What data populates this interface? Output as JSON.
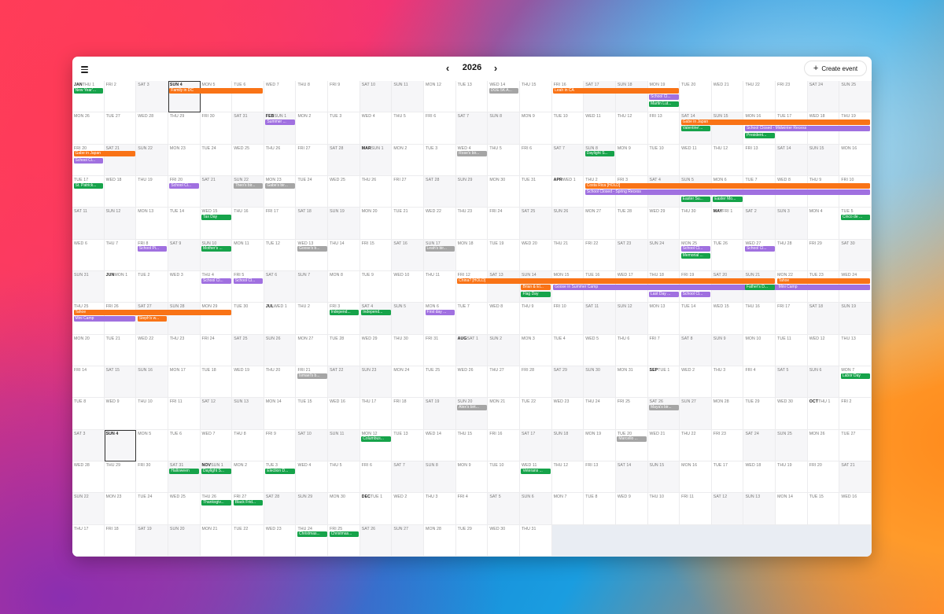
{
  "header": {
    "year": "2026",
    "create_label": "Create event"
  },
  "colors": {
    "orange": "#f97316",
    "green": "#16a34a",
    "purple": "#a070e0",
    "gray": "#a5a5a5"
  },
  "month_labels": [
    "JAN",
    "FEB",
    "MAR",
    "APR",
    "MAY",
    "JUN",
    "JUL",
    "AUG",
    "SEP",
    "OCT",
    "NOV",
    "DEC"
  ],
  "day_labels": [
    "SUN",
    "MON",
    "TUE",
    "WED",
    "THU",
    "FRI",
    "SAT"
  ],
  "today": "SUN 4",
  "events": [
    {
      "t": "New Year'...",
      "c": "green",
      "r": 0,
      "s": 0,
      "n": 1
    },
    {
      "t": "Family in DC",
      "c": "orange",
      "r": 0,
      "s": 3,
      "n": 3
    },
    {
      "t": "DOE 5K A...",
      "c": "gray",
      "r": 0,
      "s": 13,
      "n": 1
    },
    {
      "t": "Leah in CA",
      "c": "orange",
      "r": 0,
      "s": 15,
      "n": 4
    },
    {
      "t": "School Cl...",
      "c": "purple",
      "r": 0,
      "s": 18,
      "n": 1,
      "l": 1
    },
    {
      "t": "Martin Lut...",
      "c": "green",
      "r": 0,
      "s": 18,
      "n": 1,
      "l": 2
    },
    {
      "t": "Summer ...",
      "c": "purple",
      "r": 1,
      "s": 6,
      "n": 1
    },
    {
      "t": "Gabe in Japan",
      "c": "orange",
      "r": 1,
      "s": 19,
      "n": 6
    },
    {
      "t": "Valentine'...",
      "c": "green",
      "r": 1,
      "s": 19,
      "n": 1,
      "l": 1
    },
    {
      "t": "School Closed - Midwinter Recess",
      "c": "purple",
      "r": 1,
      "s": 21,
      "n": 4,
      "l": 1
    },
    {
      "t": "President...",
      "c": "green",
      "r": 1,
      "s": 21,
      "n": 1,
      "l": 2
    },
    {
      "t": "Gabe in Japan",
      "c": "orange",
      "r": 2,
      "s": 0,
      "n": 2
    },
    {
      "t": "School Cl...",
      "c": "purple",
      "r": 2,
      "s": 0,
      "n": 1,
      "l": 1
    },
    {
      "t": "Rose's bir...",
      "c": "gray",
      "r": 2,
      "s": 12,
      "n": 1
    },
    {
      "t": "Daylight S...",
      "c": "green",
      "r": 2,
      "s": 16,
      "n": 1
    },
    {
      "t": "St. Patrick...",
      "c": "green",
      "r": 3,
      "s": 0,
      "n": 1
    },
    {
      "t": "School Cl...",
      "c": "purple",
      "r": 3,
      "s": 3,
      "n": 1
    },
    {
      "t": "Theo's bir...",
      "c": "gray",
      "r": 3,
      "s": 5,
      "n": 1
    },
    {
      "t": "Gabe's bir...",
      "c": "gray",
      "r": 3,
      "s": 6,
      "n": 1
    },
    {
      "t": "Costa Rica [HOLD]",
      "c": "orange",
      "r": 3,
      "s": 16,
      "n": 9
    },
    {
      "t": "School Closed - Spring Recess",
      "c": "purple",
      "r": 3,
      "s": 16,
      "n": 9,
      "l": 1
    },
    {
      "t": "Easter Su...",
      "c": "green",
      "r": 3,
      "s": 19,
      "n": 1,
      "l": 2
    },
    {
      "t": "Easter Mo...",
      "c": "green",
      "r": 3,
      "s": 20,
      "n": 1,
      "l": 2
    },
    {
      "t": "Tax Day",
      "c": "green",
      "r": 4,
      "s": 4,
      "n": 1
    },
    {
      "t": "Cinco de ...",
      "c": "green",
      "r": 4,
      "s": 24,
      "n": 1
    },
    {
      "t": "School Pi...",
      "c": "purple",
      "r": 5,
      "s": 2,
      "n": 1
    },
    {
      "t": "Mother's ...",
      "c": "green",
      "r": 5,
      "s": 4,
      "n": 1
    },
    {
      "t": "Goose's b...",
      "c": "gray",
      "r": 5,
      "s": 7,
      "n": 1
    },
    {
      "t": "Leah's bir...",
      "c": "gray",
      "r": 5,
      "s": 11,
      "n": 1
    },
    {
      "t": "School Cl...",
      "c": "purple",
      "r": 5,
      "s": 19,
      "n": 1
    },
    {
      "t": "Memorial ...",
      "c": "green",
      "r": 5,
      "s": 19,
      "n": 1,
      "l": 1
    },
    {
      "t": "School Cl...",
      "c": "purple",
      "r": 5,
      "s": 21,
      "n": 1
    },
    {
      "t": "School Cl...",
      "c": "purple",
      "r": 6,
      "s": 4,
      "n": 1
    },
    {
      "t": "School Cl...",
      "c": "purple",
      "r": 6,
      "s": 5,
      "n": 1
    },
    {
      "t": "China? [HOLD]",
      "c": "orange",
      "r": 6,
      "s": 12,
      "n": 10
    },
    {
      "t": "Brian & El...",
      "c": "orange",
      "r": 6,
      "s": 14,
      "n": 1,
      "l": 1
    },
    {
      "t": "Goose in Summer Camp",
      "c": "purple",
      "r": 6,
      "s": 15,
      "n": 10,
      "l": 1
    },
    {
      "t": "Flag Day",
      "c": "green",
      "r": 6,
      "s": 14,
      "n": 1,
      "l": 2
    },
    {
      "t": "Last Day ...",
      "c": "purple",
      "r": 6,
      "s": 18,
      "n": 1,
      "l": 2
    },
    {
      "t": "School Cl...",
      "c": "purple",
      "r": 6,
      "s": 19,
      "n": 1,
      "l": 2
    },
    {
      "t": "Tahoe",
      "c": "orange",
      "r": 6,
      "s": 22,
      "n": 3
    },
    {
      "t": "Father's D...",
      "c": "green",
      "r": 6,
      "s": 21,
      "n": 1,
      "l": 1
    },
    {
      "t": "Mini Camp",
      "c": "purple",
      "r": 6,
      "s": 22,
      "n": 3,
      "l": 1
    },
    {
      "t": "Tahoe",
      "c": "orange",
      "r": 7,
      "s": 0,
      "n": 5
    },
    {
      "t": "Mini Camp",
      "c": "purple",
      "r": 7,
      "s": 0,
      "n": 2,
      "l": 1
    },
    {
      "t": "Steph's w...",
      "c": "orange",
      "r": 7,
      "s": 2,
      "n": 1,
      "l": 1
    },
    {
      "t": "Independ...",
      "c": "green",
      "r": 7,
      "s": 8,
      "n": 1
    },
    {
      "t": "Independ...",
      "c": "green",
      "r": 7,
      "s": 9,
      "n": 1
    },
    {
      "t": "First day ...",
      "c": "purple",
      "r": 7,
      "s": 11,
      "n": 1
    },
    {
      "t": "Labor Day",
      "c": "green",
      "r": 9,
      "s": 24,
      "n": 1
    },
    {
      "t": "Ismael's b...",
      "c": "gray",
      "r": 9,
      "s": 7,
      "n": 1
    },
    {
      "t": "Alex's birt...",
      "c": "gray",
      "r": 10,
      "s": 12,
      "n": 1
    },
    {
      "t": "Maya's bir...",
      "c": "gray",
      "r": 10,
      "s": 18,
      "n": 1
    },
    {
      "t": "Columbus...",
      "c": "green",
      "r": 11,
      "s": 9,
      "n": 1
    },
    {
      "t": "Marcello ...",
      "c": "gray",
      "r": 11,
      "s": 17,
      "n": 1
    },
    {
      "t": "Halloween",
      "c": "green",
      "r": 12,
      "s": 3,
      "n": 1
    },
    {
      "t": "Daylight S...",
      "c": "green",
      "r": 12,
      "s": 4,
      "n": 1
    },
    {
      "t": "Election D...",
      "c": "green",
      "r": 12,
      "s": 6,
      "n": 1
    },
    {
      "t": "Veterans ...",
      "c": "green",
      "r": 12,
      "s": 14,
      "n": 1
    },
    {
      "t": "Thanksgiv...",
      "c": "green",
      "r": 13,
      "s": 4,
      "n": 1
    },
    {
      "t": "Black Frid...",
      "c": "green",
      "r": 13,
      "s": 5,
      "n": 1
    },
    {
      "t": "Christmas...",
      "c": "green",
      "r": 14,
      "s": 7,
      "n": 1
    },
    {
      "t": "Christmas...",
      "c": "green",
      "r": 14,
      "s": 8,
      "n": 1
    }
  ]
}
